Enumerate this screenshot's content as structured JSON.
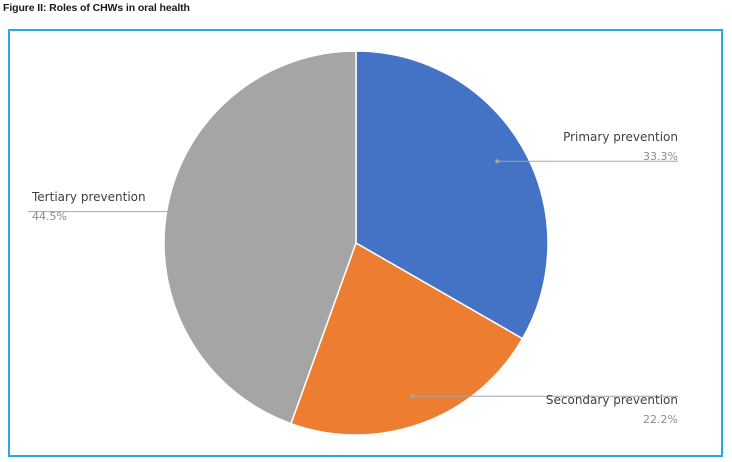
{
  "figure": {
    "title": "Figure II: Roles of CHWs in oral health"
  },
  "chart_data": {
    "type": "pie",
    "title": "",
    "slices": [
      {
        "label": "Primary prevention",
        "value": 33.3,
        "display": "33.3%",
        "color": "#4472c4"
      },
      {
        "label": "Secondary prevention",
        "value": 22.2,
        "display": "22.2%",
        "color": "#ed7d31"
      },
      {
        "label": "Tertiary prevention",
        "value": 44.5,
        "display": "44.5%",
        "color": "#a5a5a5"
      }
    ],
    "start_angle": "12 o'clock",
    "direction": "clockwise",
    "legend": "none (leader-line data labels)",
    "frame_color": "#27a9e1"
  }
}
